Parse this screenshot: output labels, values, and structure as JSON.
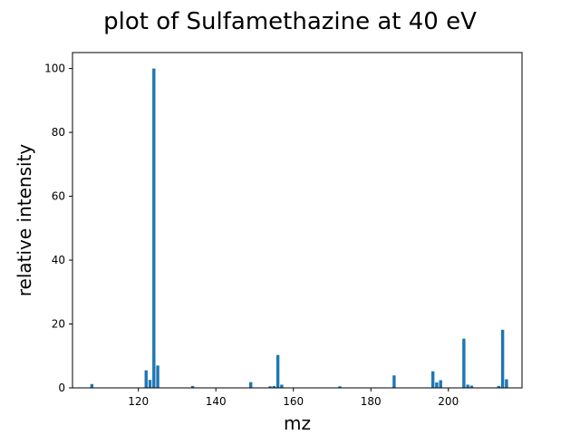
{
  "chart_data": {
    "type": "bar",
    "title": "plot of Sulfamethazine at 40 eV",
    "xlabel": "mz",
    "ylabel": "relative intensity",
    "xlim": [
      103,
      219
    ],
    "ylim": [
      0,
      105
    ],
    "xticks": [
      120,
      140,
      160,
      180,
      200
    ],
    "yticks": [
      0,
      20,
      40,
      60,
      80,
      100
    ],
    "grid": false,
    "color": "#1f77b4",
    "x": [
      108,
      122,
      123,
      124,
      125,
      134,
      149,
      154,
      155,
      156,
      157,
      172,
      186,
      196,
      197,
      198,
      204,
      205,
      206,
      213,
      214,
      215
    ],
    "values": [
      1.2,
      5.5,
      2.5,
      100,
      7,
      0.6,
      1.8,
      0.5,
      0.6,
      10.3,
      1.0,
      0.5,
      3.9,
      5.2,
      1.7,
      2.4,
      15.4,
      1.0,
      0.7,
      0.6,
      18.2,
      2.7
    ]
  }
}
